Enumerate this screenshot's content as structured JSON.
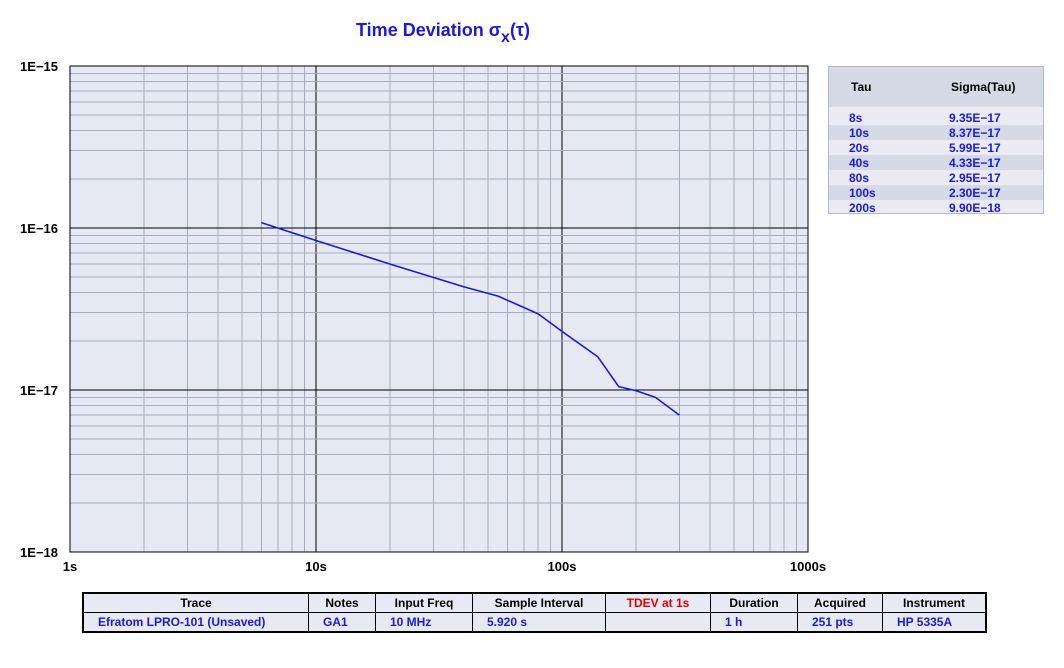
{
  "chart_data": {
    "type": "line",
    "title": "Time Deviation σ",
    "title_sub": "x",
    "title_suffix": "(τ)",
    "xscale": "log",
    "yscale": "log",
    "xlim": [
      1,
      1000
    ],
    "ylim": [
      1e-18,
      1e-15
    ],
    "x_tick_labels": [
      "1s",
      "10s",
      "100s",
      "1000s"
    ],
    "y_tick_labels": [
      "1E−15",
      "1E−16",
      "1E−17",
      "1E−18"
    ],
    "grid": true,
    "series": [
      {
        "color": "#1a1adc",
        "x": [
          6,
          8,
          10,
          20,
          40,
          55,
          80,
          100,
          140,
          170,
          200,
          240,
          300
        ],
        "y": [
          1.08e-16,
          9.35e-17,
          8.37e-17,
          5.99e-17,
          4.33e-17,
          3.8e-17,
          2.95e-17,
          2.3e-17,
          1.6e-17,
          1.05e-17,
          9.9e-18,
          9e-18,
          7e-18
        ]
      }
    ]
  },
  "colors": {
    "plot_bg": "#e6e9f4",
    "line": "#1a1adc",
    "major_grid": "#000000",
    "minor_grid": "#a7adc0",
    "marker_line": "#e00000"
  },
  "tau_table": {
    "headers": [
      "Tau",
      "Sigma(Tau)"
    ],
    "rows": [
      {
        "tau": "8s",
        "sigma": "9.35E−17"
      },
      {
        "tau": "10s",
        "sigma": "8.37E−17"
      },
      {
        "tau": "20s",
        "sigma": "5.99E−17"
      },
      {
        "tau": "40s",
        "sigma": "4.33E−17"
      },
      {
        "tau": "80s",
        "sigma": "2.95E−17"
      },
      {
        "tau": "100s",
        "sigma": "2.30E−17"
      },
      {
        "tau": "200s",
        "sigma": "9.90E−18"
      }
    ]
  },
  "info_table": {
    "headers": [
      "Trace",
      "Notes",
      "Input Freq",
      "Sample Interval",
      "TDEV at 1s",
      "Duration",
      "Acquired",
      "Instrument"
    ],
    "values": [
      "Efratom LPRO-101 (Unsaved)",
      "GA1",
      "10 MHz",
      "5.920 s",
      "",
      "1 h",
      "251 pts",
      "HP 5335A"
    ]
  }
}
